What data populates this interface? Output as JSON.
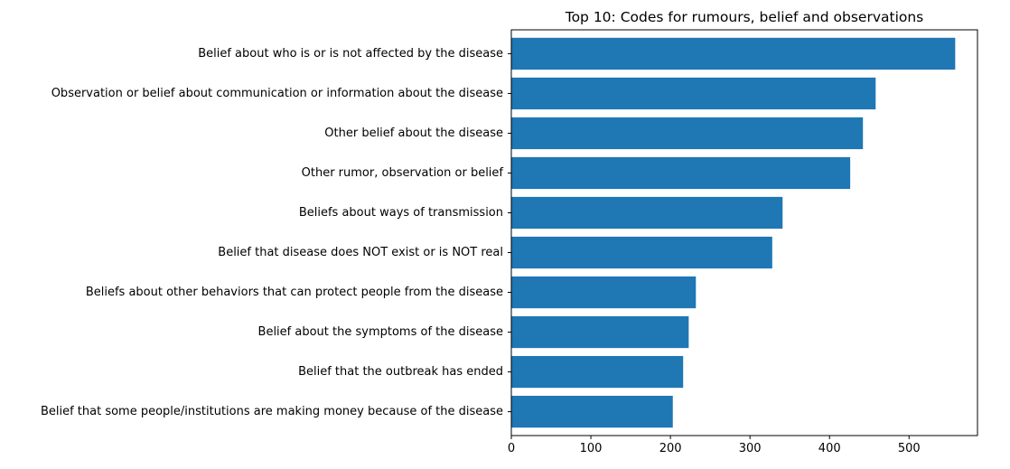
{
  "chart_data": {
    "type": "bar",
    "orientation": "horizontal",
    "title": "Top 10: Codes for rumours, belief and observations",
    "xlabel": "",
    "ylabel": "",
    "categories": [
      "Belief about who is or is not affected by the disease",
      "Observation or belief about communication or information about the disease",
      "Other belief about the disease",
      "Other rumor, observation or belief",
      "Beliefs about ways of transmission",
      "Belief that disease does NOT exist or is NOT real",
      "Beliefs about other behaviors that can protect people from the disease",
      "Belief about the symptoms of the disease",
      "Belief that the outbreak has ended",
      "Belief that some people/institutions are making money because of the disease"
    ],
    "values": [
      558,
      458,
      442,
      426,
      341,
      328,
      232,
      223,
      216,
      203
    ],
    "xlim": [
      0,
      586
    ],
    "xticks": [
      0,
      100,
      200,
      300,
      400,
      500
    ],
    "grid": false,
    "bar_color": "#1f77b4"
  }
}
